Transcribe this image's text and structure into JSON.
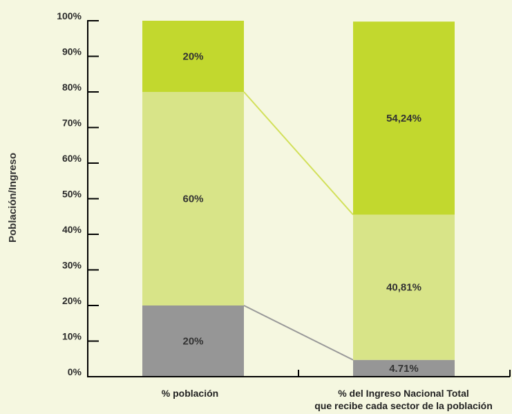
{
  "chart_data": {
    "type": "bar",
    "stacked": true,
    "title": "",
    "xlabel": "",
    "ylabel": "Población/Ingreso",
    "ylim": [
      0,
      100
    ],
    "y_ticks": [
      "0%",
      "10%",
      "20%",
      "30%",
      "40%",
      "50%",
      "60%",
      "70%",
      "80%",
      "90%",
      "100%"
    ],
    "categories": [
      [
        "% población"
      ],
      [
        "% del Ingreso Nacional Total",
        "que recibe cada sector de la población"
      ]
    ],
    "series": [
      {
        "color": "#969696",
        "values": [
          20,
          4.71
        ],
        "labels": [
          "20%",
          "4.71%"
        ]
      },
      {
        "color": "#d8e488",
        "values": [
          60,
          40.81
        ],
        "labels": [
          "60%",
          "40,81%"
        ]
      },
      {
        "color": "#c2d82e",
        "values": [
          20,
          54.24
        ],
        "labels": [
          "20%",
          "54,24%"
        ]
      }
    ],
    "connectors": [
      {
        "color": "#999999"
      },
      {
        "color": "#d2e05a"
      }
    ],
    "grid": false,
    "legend": "none"
  }
}
